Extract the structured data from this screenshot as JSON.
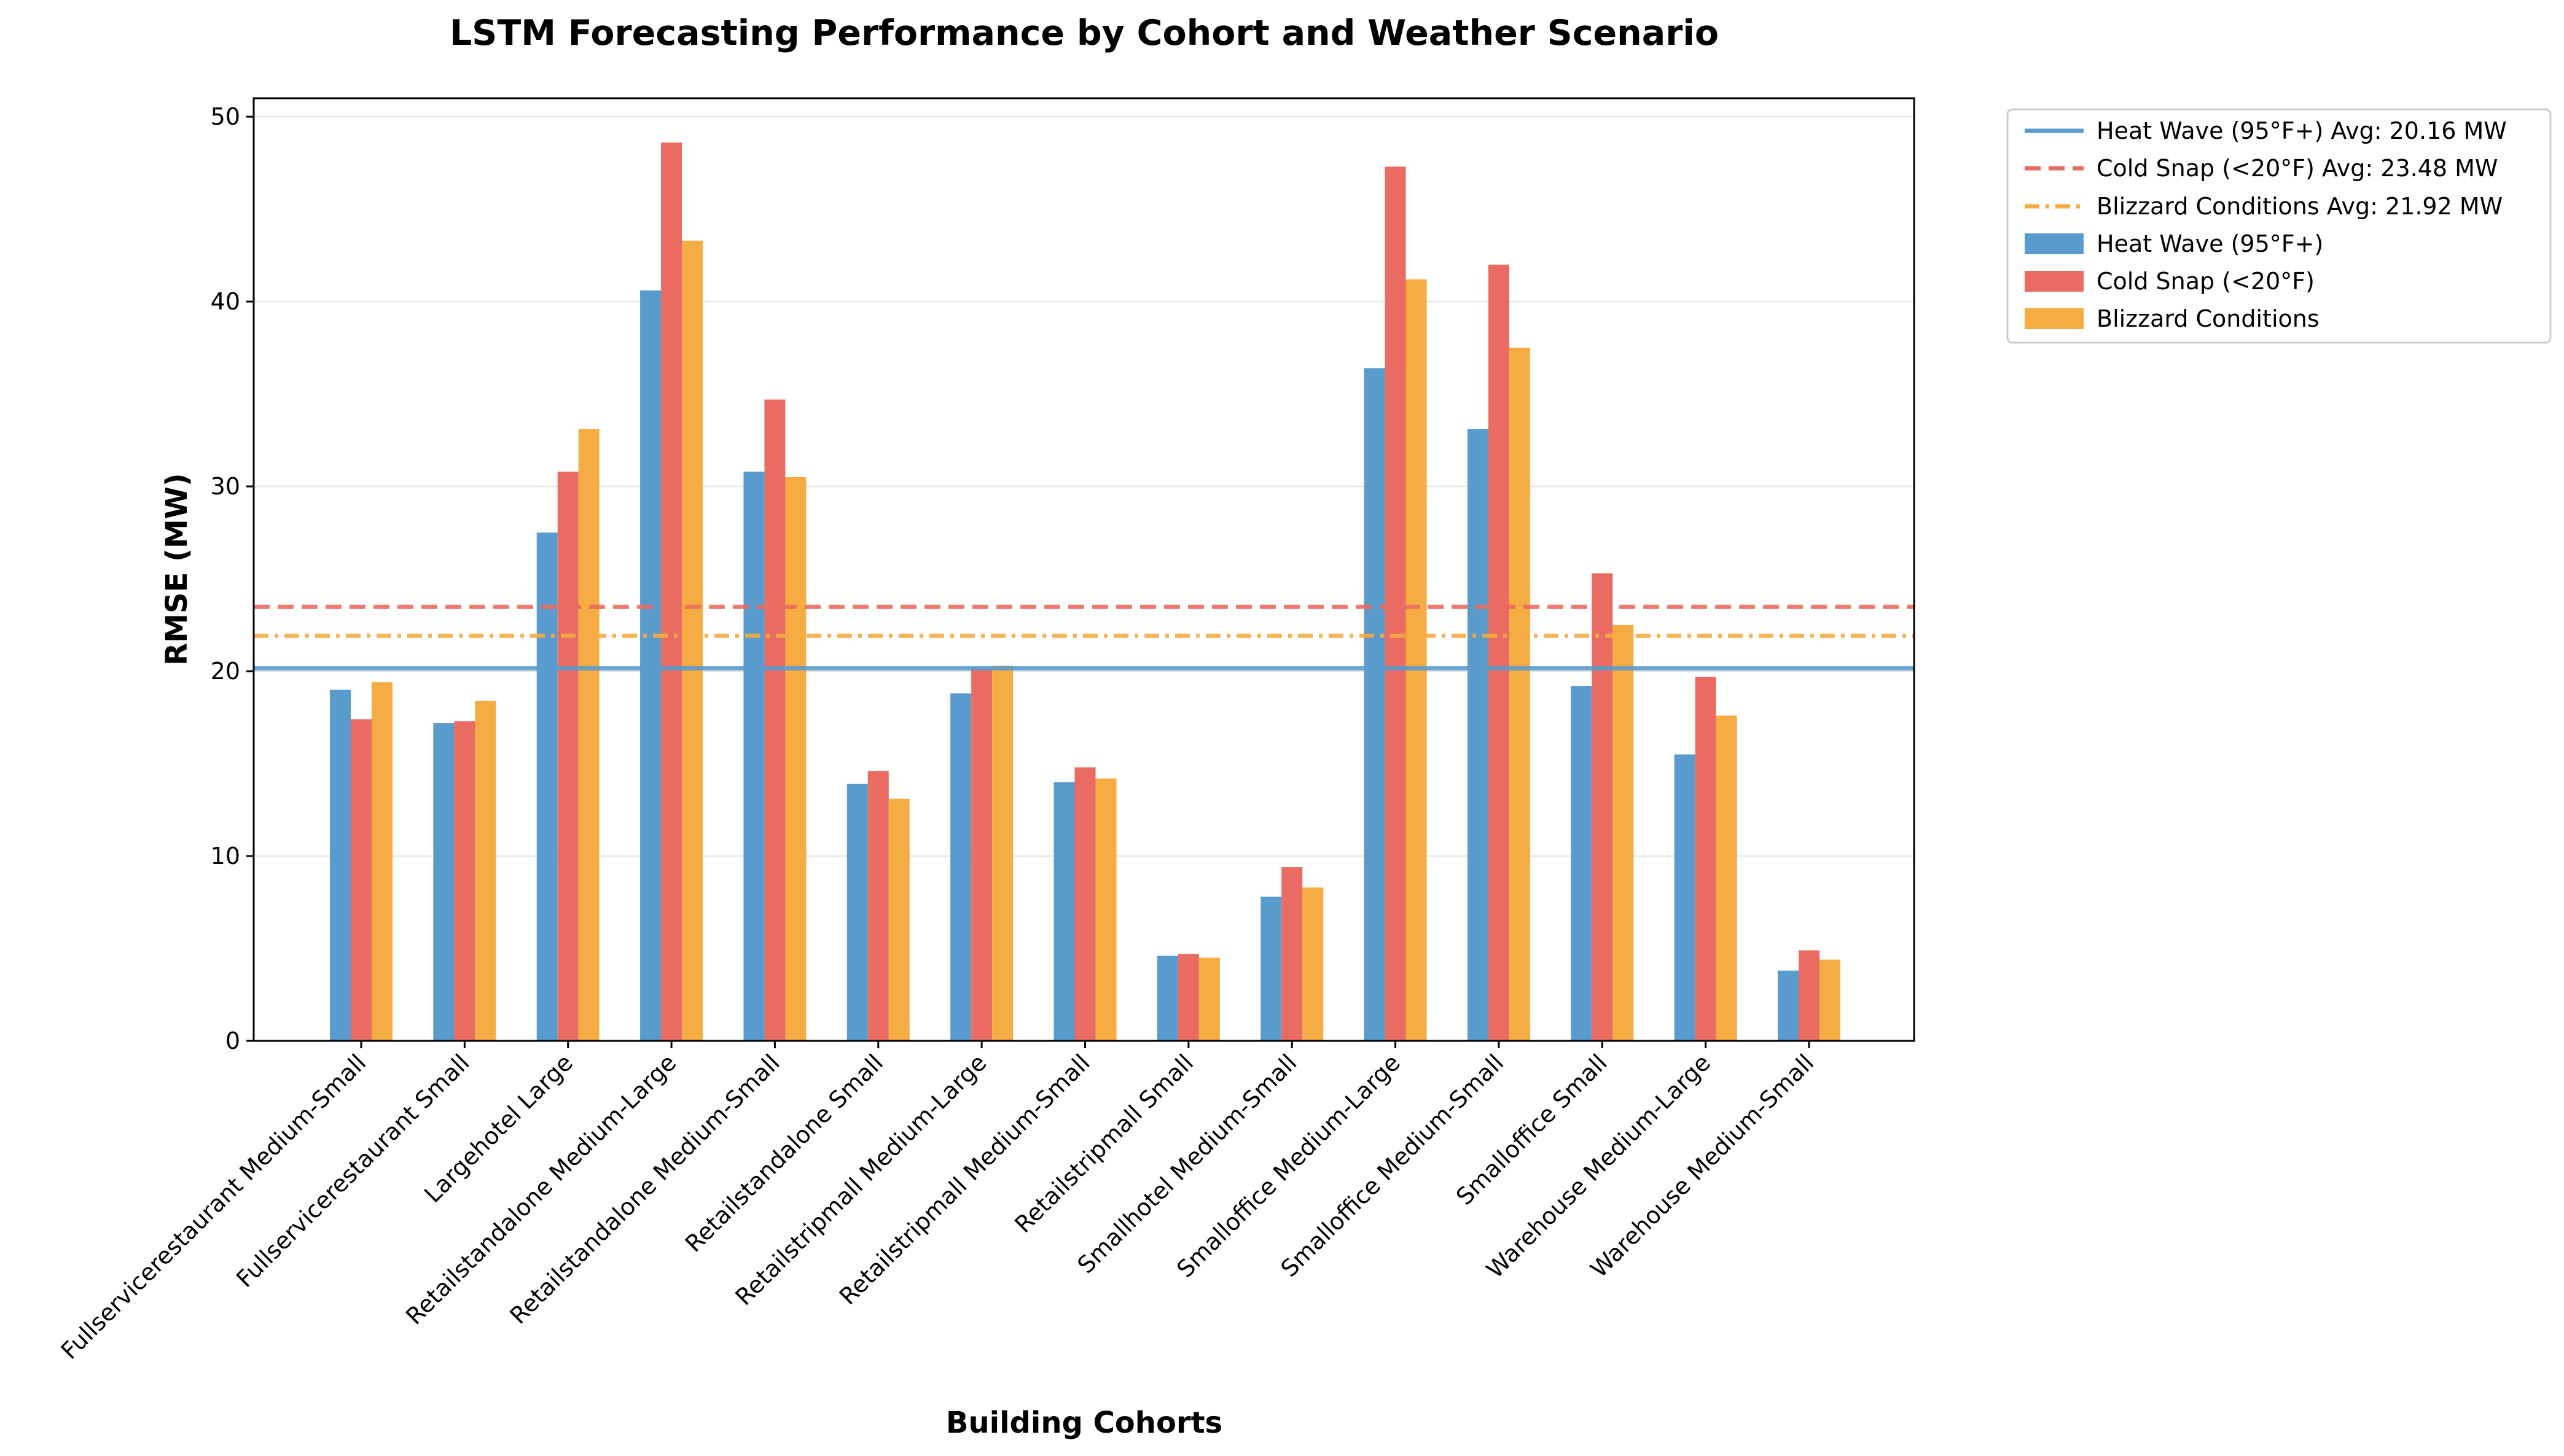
{
  "chart_data": {
    "type": "bar",
    "title": "LSTM Forecasting Performance by Cohort and Weather Scenario",
    "xlabel": "Building Cohorts",
    "ylabel": "RMSE (MW)",
    "ylim": [
      0,
      51
    ],
    "yticks": [
      0,
      10,
      20,
      30,
      40,
      50
    ],
    "grid": "horizontal",
    "legend_position": "outside-top-right",
    "categories": [
      "Fullservicerestaurant Medium-Small",
      "Fullservicerestaurant Small",
      "Largehotel Large",
      "Retailstandalone Medium-Large",
      "Retailstandalone Medium-Small",
      "Retailstandalone Small",
      "Retailstripmall Medium-Large",
      "Retailstripmall Medium-Small",
      "Retailstripmall Small",
      "Smallhotel Medium-Small",
      "Smalloffice Medium-Large",
      "Smalloffice Medium-Small",
      "Smalloffice Small",
      "Warehouse Medium-Large",
      "Warehouse Medium-Small"
    ],
    "series": [
      {
        "name": "Heat Wave (95°F+)",
        "color": "#5A9BCD",
        "values": [
          19.0,
          17.2,
          27.5,
          40.6,
          30.8,
          13.9,
          18.8,
          14.0,
          4.6,
          7.8,
          36.4,
          33.1,
          19.2,
          15.5,
          3.8
        ]
      },
      {
        "name": "Cold Snap (<20°F)",
        "color": "#EA6B61",
        "values": [
          17.4,
          17.3,
          30.8,
          48.6,
          34.7,
          14.6,
          20.2,
          14.8,
          4.7,
          9.4,
          47.3,
          42.0,
          25.3,
          19.7,
          4.9
        ]
      },
      {
        "name": "Blizzard Conditions",
        "color": "#F4AC43",
        "values": [
          19.4,
          18.4,
          33.1,
          43.3,
          30.5,
          13.1,
          20.3,
          14.2,
          4.5,
          8.3,
          41.2,
          37.5,
          22.5,
          17.6,
          4.4
        ]
      }
    ],
    "reference_lines": [
      {
        "label": "Heat Wave (95°F+) Avg: 20.16 MW",
        "value": 20.16,
        "style": "solid",
        "color": "#5A9BCD"
      },
      {
        "label": "Cold Snap (<20°F) Avg: 23.48 MW",
        "value": 23.48,
        "style": "dashed",
        "color": "#EA6B61"
      },
      {
        "label": "Blizzard Conditions Avg: 21.92 MW",
        "value": 21.92,
        "style": "dashdot",
        "color": "#F4AC43"
      }
    ]
  }
}
